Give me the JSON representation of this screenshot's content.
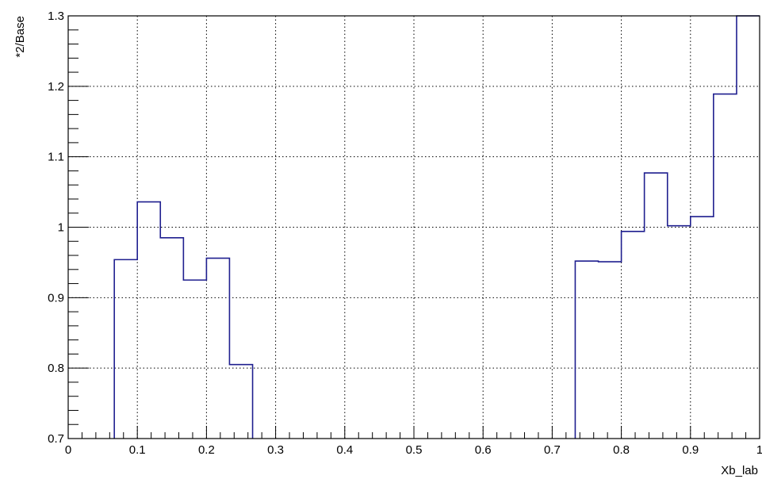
{
  "chart_data": {
    "type": "step",
    "title": "",
    "xlabel": "Xb_lab",
    "ylabel": "*2/Base",
    "xlim": [
      0,
      1
    ],
    "ylim": [
      0.7,
      1.3
    ],
    "grid": true,
    "x_ticks": [
      "0",
      "0.1",
      "0.2",
      "0.3",
      "0.4",
      "0.5",
      "0.6",
      "0.7",
      "0.8",
      "0.9",
      "1"
    ],
    "y_ticks": [
      "0.7",
      "0.8",
      "0.9",
      "1",
      "1.1",
      "1.2",
      "1.3"
    ],
    "series": [
      {
        "color": "#1f1f8f",
        "bins": [
          {
            "x0": 0.0667,
            "x1": 0.1,
            "y": 0.954
          },
          {
            "x0": 0.1,
            "x1": 0.1333,
            "y": 1.036
          },
          {
            "x0": 0.1333,
            "x1": 0.1667,
            "y": 0.985
          },
          {
            "x0": 0.1667,
            "x1": 0.2,
            "y": 0.925
          },
          {
            "x0": 0.2,
            "x1": 0.2333,
            "y": 0.956
          },
          {
            "x0": 0.2333,
            "x1": 0.2667,
            "y": 0.805
          },
          {
            "x0": 0.7333,
            "x1": 0.7667,
            "y": 0.952
          },
          {
            "x0": 0.7667,
            "x1": 0.8,
            "y": 0.951
          },
          {
            "x0": 0.8,
            "x1": 0.8333,
            "y": 0.994
          },
          {
            "x0": 0.8333,
            "x1": 0.8667,
            "y": 1.077
          },
          {
            "x0": 0.8667,
            "x1": 0.9,
            "y": 1.002
          },
          {
            "x0": 0.9,
            "x1": 0.9333,
            "y": 1.015
          },
          {
            "x0": 0.9333,
            "x1": 0.9667,
            "y": 1.189
          },
          {
            "x0": 0.9667,
            "x1": 1.0,
            "y": 1.3
          }
        ]
      }
    ]
  }
}
